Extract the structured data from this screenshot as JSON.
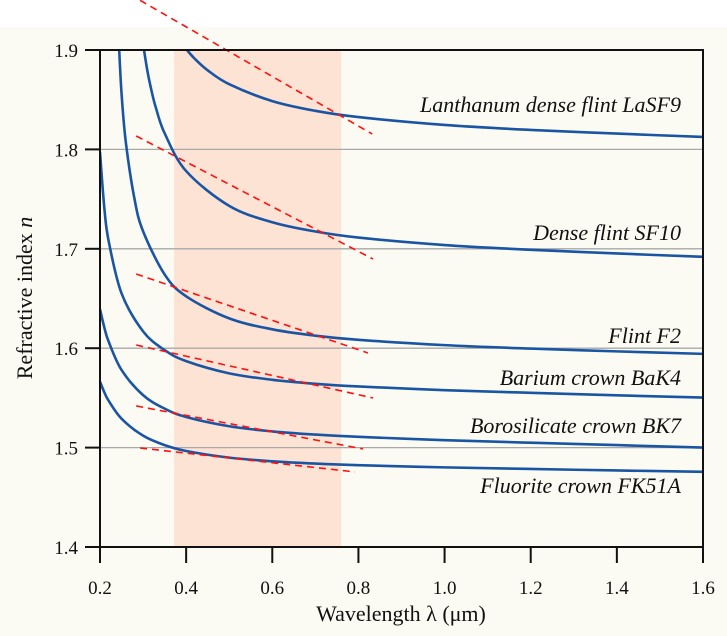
{
  "chart_data": {
    "type": "line",
    "title": "",
    "xlabel": "Wavelength λ (μm)",
    "ylabel_text": "Refractive index ",
    "ylabel_var": "n",
    "xlim": [
      0.2,
      1.6
    ],
    "ylim": [
      1.4,
      1.9
    ],
    "x_ticks": [
      0.2,
      0.4,
      0.6,
      0.8,
      1.0,
      1.2,
      1.4,
      1.6
    ],
    "x_tick_labels": [
      "0.2",
      "0.4",
      "0.6",
      "0.8",
      "1.0",
      "1.2",
      "1.4",
      "1.6"
    ],
    "y_ticks": [
      1.4,
      1.5,
      1.6,
      1.7,
      1.8,
      1.9
    ],
    "y_tick_labels": [
      "1.4",
      "1.5",
      "1.6",
      "1.7",
      "1.8",
      "1.9"
    ],
    "grid": "horizontal",
    "shaded_region": {
      "x_range": [
        0.372,
        0.76
      ],
      "color": "#fde3d4"
    },
    "colors": {
      "background": "#fcfbf3",
      "curve": "#1a55a3",
      "tangent": "#ff1010",
      "grid": "#a8a8a8",
      "axis": "#111111"
    },
    "series": [
      {
        "name": "Lanthanum dense flint LaSF9",
        "x": [
          0.4,
          0.42,
          0.45,
          0.5,
          0.6,
          0.7,
          0.8,
          1.0,
          1.2,
          1.4,
          1.6
        ],
        "y": [
          1.9009,
          1.8912,
          1.8796,
          1.8656,
          1.8486,
          1.8388,
          1.8325,
          1.8246,
          1.8196,
          1.8159,
          1.8125
        ],
        "tangent": {
          "x": [
            0.293,
            0.832
          ],
          "y": [
            1.95,
            1.8155
          ]
        },
        "label_n": 1.8376
      },
      {
        "name": "Dense flint SF10",
        "x": [
          0.3,
          0.31,
          0.32,
          0.33,
          0.35,
          0.4,
          0.5,
          0.6,
          0.7,
          0.8,
          1.0,
          1.2,
          1.4,
          1.6
        ],
        "y": [
          1.9062,
          1.8791,
          1.8582,
          1.8415,
          1.8163,
          1.7782,
          1.7432,
          1.7267,
          1.7174,
          1.7113,
          1.7038,
          1.699,
          1.6953,
          1.6919
        ],
        "tangent": {
          "x": [
            0.284,
            0.834
          ],
          "y": [
            1.8135,
            1.6897
          ]
        },
        "label_n": 1.7089
      },
      {
        "name": "Flint F2",
        "x": [
          0.244,
          0.25,
          0.26,
          0.28,
          0.3,
          0.35,
          0.4,
          0.5,
          0.6,
          0.7,
          0.8,
          1.0,
          1.2,
          1.4,
          1.6
        ],
        "y": [
          1.905,
          1.8563,
          1.8071,
          1.7503,
          1.7177,
          1.6742,
          1.6522,
          1.63,
          1.619,
          1.6126,
          1.6084,
          1.6031,
          1.5996,
          1.5968,
          1.5943
        ],
        "tangent": {
          "x": [
            0.284,
            0.822
          ],
          "y": [
            1.6747,
            1.5952
          ]
        },
        "label_n": 1.6052
      },
      {
        "name": "Barium crown BaK4",
        "x": [
          0.2,
          0.21,
          0.22,
          0.25,
          0.3,
          0.35,
          0.4,
          0.5,
          0.6,
          0.7,
          0.8,
          1.0,
          1.2,
          1.4,
          1.6
        ],
        "y": [
          1.7971,
          1.7413,
          1.708,
          1.6552,
          1.6169,
          1.5981,
          1.587,
          1.5747,
          1.5682,
          1.5642,
          1.5615,
          1.5578,
          1.5551,
          1.5526,
          1.5503
        ],
        "tangent": {
          "x": [
            0.284,
            0.834
          ],
          "y": [
            1.6032,
            1.5499
          ]
        },
        "label_n": 1.563
      },
      {
        "name": "Borosilicate crown BK7",
        "x": [
          0.2,
          0.21,
          0.22,
          0.25,
          0.3,
          0.35,
          0.4,
          0.5,
          0.6,
          0.7,
          0.8,
          1.0,
          1.2,
          1.4,
          1.6
        ],
        "y": [
          1.6391,
          1.6209,
          1.6067,
          1.5781,
          1.5528,
          1.5392,
          1.5308,
          1.5215,
          1.5163,
          1.5131,
          1.5108,
          1.5075,
          1.5049,
          1.5025,
          1.5
        ],
        "tangent": {
          "x": [
            0.284,
            0.811
          ],
          "y": [
            1.5419,
            1.4986
          ]
        },
        "label_n": 1.5147
      },
      {
        "name": "Fluorite crown FK51A",
        "x": [
          0.2,
          0.21,
          0.22,
          0.25,
          0.3,
          0.35,
          0.4,
          0.5,
          0.6,
          0.7,
          0.8,
          1.0,
          1.2,
          1.4,
          1.6
        ],
        "y": [
          1.5663,
          1.5557,
          1.5472,
          1.5291,
          1.512,
          1.5025,
          1.4966,
          1.4899,
          1.4862,
          1.4839,
          1.4823,
          1.4801,
          1.4785,
          1.477,
          1.4756
        ],
        "tangent": {
          "x": [
            0.293,
            0.792
          ],
          "y": [
            1.4996,
            1.4755
          ]
        },
        "label_n": 1.4543
      }
    ]
  }
}
